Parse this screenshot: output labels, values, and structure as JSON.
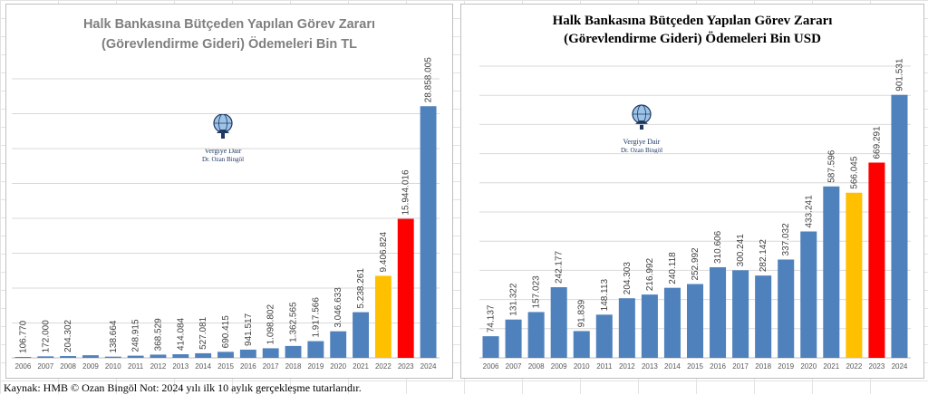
{
  "colors": {
    "base": "#4f81bd",
    "2022": "#ffc000",
    "2023": "#ff0000"
  },
  "watermark": {
    "line1": "Vergiye Dair",
    "line2": "Dr. Ozan Bingöl",
    "icon": "globe-atlas-logo"
  },
  "footnote": "Kaynak: HMB © Ozan Bingöl Not: 2024 yılı ilk 10 aylık gerçekleşme tutarlarıdır.",
  "chart_data": [
    {
      "type": "bar",
      "title_line1": "Halk Bankasına Bütçeden Yapılan Görev Zararı",
      "title_line2": "(Görevlendirme Gideri) Ödemeleri Bin TL",
      "categories": [
        "2006",
        "2007",
        "2008",
        "2009",
        "2010",
        "2011",
        "2012",
        "2013",
        "2014",
        "2015",
        "2016",
        "2017",
        "2018",
        "2019",
        "2020",
        "2021",
        "2022",
        "2023",
        "2024"
      ],
      "values": [
        106770,
        172000,
        204302,
        300000,
        138664,
        248915,
        368529,
        414084,
        527081,
        690415,
        941517,
        1098802,
        1362565,
        1917566,
        3046633,
        5238261,
        9406824,
        15944016,
        28858005
      ],
      "labels": [
        "106.770",
        "172.000",
        "204.302",
        "",
        "138.664",
        "248.915",
        "368.529",
        "414.084",
        "527.081",
        "690.415",
        "941.517",
        "1.098.802",
        "1.362.565",
        "1.917.566",
        "3.046.633",
        "5.238.261",
        "9.406.824",
        "15.944.016",
        "28.858.005"
      ],
      "highlight": {
        "2022": "#ffc000",
        "2023": "#ff0000"
      },
      "ylim": [
        0,
        32000000
      ],
      "grid": true,
      "legend": "none"
    },
    {
      "type": "bar",
      "title_line1": "Halk Bankasına Bütçeden Yapılan Görev Zararı",
      "title_line2": "(Görevlendirme Gideri) Ödemeleri Bin USD",
      "categories": [
        "2006",
        "2007",
        "2008",
        "2009",
        "2010",
        "2011",
        "2012",
        "2013",
        "2014",
        "2015",
        "2016",
        "2017",
        "2018",
        "2019",
        "2020",
        "2021",
        "2022",
        "2023",
        "2024"
      ],
      "values": [
        74137,
        131322,
        157023,
        242177,
        91839,
        148113,
        204303,
        216992,
        240118,
        252992,
        310606,
        300241,
        282142,
        337032,
        433241,
        587596,
        566045,
        669291,
        901531
      ],
      "labels": [
        "74.137",
        "131.322",
        "157.023",
        "242.177",
        "91.839",
        "148.113",
        "204.303",
        "216.992",
        "240.118",
        "252.992",
        "310.606",
        "300.241",
        "282.142",
        "337.032",
        "433.241",
        "587.596",
        "566.045",
        "669.291",
        "901.531"
      ],
      "highlight": {
        "2022": "#ffc000",
        "2023": "#ff0000"
      },
      "ylim": [
        0,
        1000000
      ],
      "grid": true,
      "legend": "none"
    }
  ]
}
